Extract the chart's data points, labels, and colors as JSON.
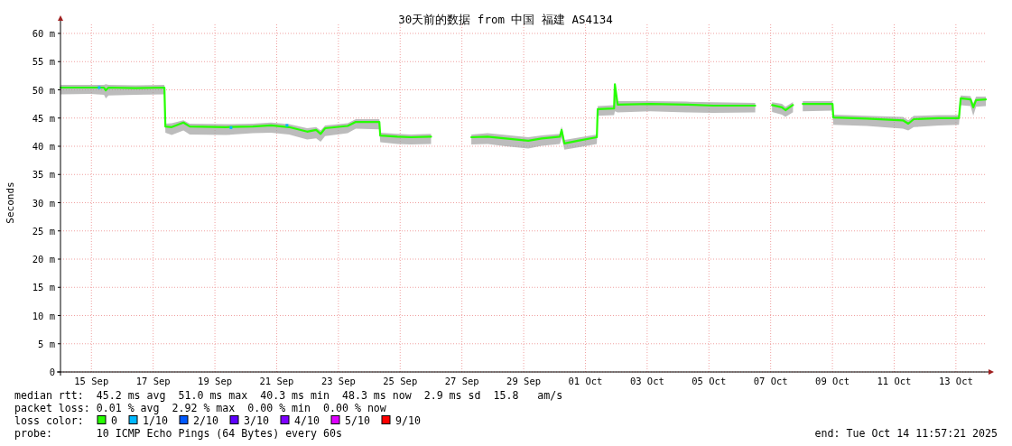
{
  "chart_data": {
    "type": "line",
    "title": "30天前的数据 from 中国 福建 AS4134",
    "ylabel": "Seconds",
    "xlim": [
      "2025-09-14T11:57",
      "2025-10-14T11:57"
    ],
    "xticks": [
      {
        "value": "2025-09-15T12:00",
        "label": "15 Sep"
      },
      {
        "value": "2025-09-17T12:00",
        "label": "17 Sep"
      },
      {
        "value": "2025-09-19T12:00",
        "label": "19 Sep"
      },
      {
        "value": "2025-09-21T12:00",
        "label": "21 Sep"
      },
      {
        "value": "2025-09-23T12:00",
        "label": "23 Sep"
      },
      {
        "value": "2025-09-25T12:00",
        "label": "25 Sep"
      },
      {
        "value": "2025-09-27T12:00",
        "label": "27 Sep"
      },
      {
        "value": "2025-09-29T12:00",
        "label": "29 Sep"
      },
      {
        "value": "2025-10-01T12:00",
        "label": "01 Oct"
      },
      {
        "value": "2025-10-03T12:00",
        "label": "03 Oct"
      },
      {
        "value": "2025-10-05T12:00",
        "label": "05 Oct"
      },
      {
        "value": "2025-10-07T12:00",
        "label": "07 Oct"
      },
      {
        "value": "2025-10-09T12:00",
        "label": "09 Oct"
      },
      {
        "value": "2025-10-11T12:00",
        "label": "11 Oct"
      },
      {
        "value": "2025-10-13T12:00",
        "label": "13 Oct"
      }
    ],
    "ylim": [
      0,
      60
    ],
    "yticks": [
      0,
      {
        "value": 5,
        "label": "5 m"
      },
      {
        "value": 10,
        "label": "10 m"
      },
      {
        "value": 15,
        "label": "15 m"
      },
      {
        "value": 20,
        "label": "20 m"
      },
      {
        "value": 25,
        "label": "25 m"
      },
      {
        "value": 30,
        "label": "30 m"
      },
      {
        "value": 35,
        "label": "35 m"
      },
      {
        "value": 40,
        "label": "40 m"
      },
      {
        "value": 45,
        "label": "45 m"
      },
      {
        "value": 50,
        "label": "50 m"
      },
      {
        "value": 55,
        "label": "55 m"
      },
      {
        "value": 60,
        "label": "60 m"
      }
    ],
    "grid": true,
    "legend": "bottom",
    "legend_title": "loss color:",
    "series": [
      {
        "name": "0",
        "color": "#26ff00",
        "x": [
          "2025-09-14T12:00",
          "2025-09-15T11:00",
          "2025-09-15T21:45",
          "2025-09-15T23:10",
          "2025-09-16T01:15",
          "2025-09-16T22:20",
          "2025-09-17T20:45",
          "2025-09-17T21:30",
          "2025-09-18T02:25",
          "2025-09-18T11:30",
          "2025-09-18T16:25",
          "2025-09-19T20:30",
          "2025-09-20T17:30",
          "2025-09-21T07:35",
          "2025-09-21T21:40",
          "2025-09-22T11:40",
          "2025-09-22T18:40",
          "2025-09-22T22:10",
          "2025-09-23T01:40",
          "2025-09-23T19:10",
          "2025-09-24T01:30",
          "2025-09-24T19:50",
          "2025-09-24T20:30",
          "2025-09-25T09:50",
          "2025-09-25T20:20",
          "2025-09-26T11:50",
          "2025-09-26T12:00",
          "2025-09-27T19:20",
          "2025-09-28T07:55",
          "2025-09-28T22:00",
          "2025-09-29T15:35",
          "2025-09-30T02:05",
          "2025-09-30T16:10",
          "2025-09-30T17:30",
          "2025-09-30T19:40",
          "2025-10-01T06:10",
          "2025-10-01T20:50",
          "2025-10-01T21:35",
          "2025-10-02T10:15",
          "2025-10-02T10:55",
          "2025-10-02T13:05",
          "2025-10-03T14:20",
          "2025-10-04T18:25",
          "2025-10-05T15:25",
          "2025-10-06T23:45",
          "2025-10-07T00:00",
          "2025-10-07T13:05",
          "2025-10-07T20:45",
          "2025-10-07T23:30",
          "2025-10-08T05:10",
          "2025-10-08T05:20",
          "2025-10-08T12:55",
          "2025-10-09T12:05",
          "2025-10-09T12:45",
          "2025-10-10T14:45",
          "2025-10-11T18:50",
          "2025-10-11T23:00",
          "2025-10-12T03:15",
          "2025-10-12T22:50",
          "2025-10-13T14:20",
          "2025-10-13T15:45",
          "2025-10-13T23:25",
          "2025-10-14T01:30",
          "2025-10-14T03:40",
          "2025-10-14T11:15"
        ],
        "values": [
          50.4,
          50.4,
          50.4,
          49.9,
          50.4,
          50.3,
          50.4,
          43.5,
          43.4,
          44.2,
          43.5,
          43.4,
          43.5,
          43.7,
          43.4,
          42.6,
          42.9,
          42.2,
          43.2,
          43.6,
          44.3,
          44.3,
          41.9,
          41.7,
          41.6,
          41.7,
          null,
          41.6,
          41.7,
          41.4,
          41.0,
          41.4,
          41.7,
          42.9,
          40.5,
          41.0,
          41.6,
          46.6,
          46.7,
          51.0,
          47.4,
          47.5,
          47.4,
          47.2,
          47.2,
          null,
          47.3,
          46.9,
          46.4,
          47.3,
          null,
          47.5,
          47.5,
          45.1,
          44.9,
          44.6,
          44.0,
          44.8,
          45.0,
          45.0,
          48.5,
          48.3,
          46.9,
          48.2,
          48.3
        ],
        "lower": [
          49.2,
          49.3,
          49.1,
          48.5,
          49.0,
          49.1,
          49.2,
          42.4,
          42.0,
          42.8,
          42.1,
          42.0,
          42.3,
          42.4,
          42.1,
          41.2,
          41.4,
          40.8,
          41.8,
          42.3,
          43.1,
          43.0,
          40.7,
          40.4,
          40.3,
          40.4,
          null,
          40.3,
          40.4,
          40.0,
          39.6,
          40.1,
          40.4,
          41.5,
          39.4,
          39.8,
          40.4,
          45.4,
          45.5,
          46.2,
          46.0,
          46.2,
          46.0,
          45.9,
          46.0,
          null,
          46.1,
          45.6,
          45.2,
          46.0,
          null,
          46.2,
          46.3,
          43.8,
          43.6,
          43.1,
          42.8,
          43.4,
          43.7,
          43.8,
          47.3,
          47.1,
          45.4,
          47.0,
          47.1
        ],
        "upper": [
          50.9,
          50.9,
          50.9,
          51.0,
          50.9,
          50.8,
          50.9,
          44.0,
          44.1,
          44.6,
          44.0,
          43.9,
          44.0,
          44.2,
          43.9,
          43.2,
          43.4,
          42.8,
          43.7,
          44.1,
          44.8,
          44.8,
          42.4,
          42.2,
          42.1,
          42.2,
          null,
          42.1,
          42.3,
          42.0,
          41.6,
          41.9,
          42.2,
          43.5,
          41.1,
          41.5,
          42.1,
          47.1,
          47.3,
          51.0,
          48.0,
          48.0,
          47.9,
          47.8,
          47.7,
          null,
          47.8,
          47.5,
          47.0,
          47.8,
          null,
          48.0,
          48.0,
          45.6,
          45.4,
          45.2,
          44.6,
          45.4,
          45.5,
          45.5,
          49.0,
          48.9,
          47.6,
          48.8,
          48.8
        ]
      },
      {
        "name": "1/10",
        "color": "#00b8ff",
        "type": "scatter",
        "x": [
          "2025-09-15T18:00",
          "2025-09-20T00:30",
          "2025-09-21T20:00"
        ],
        "values": [
          50.4,
          43.3,
          43.7
        ]
      },
      {
        "name": "2/10",
        "color": "#0059ff",
        "type": "scatter"
      },
      {
        "name": "3/10",
        "color": "#5e00ff",
        "type": "scatter"
      },
      {
        "name": "4/10",
        "color": "#7e00ff",
        "type": "scatter"
      },
      {
        "name": "5/10",
        "color": "#dd00ff",
        "type": "scatter"
      },
      {
        "name": "9/10",
        "color": "#ff0000",
        "type": "scatter"
      }
    ],
    "annotations": [
      "median rtt:  45.2 ms avg  51.0 ms max  40.3 ms min  48.3 ms now  2.9 ms sd  15.8   am/s",
      "packet loss: 0.01 % avg  2.92 % max  0.00 % min  0.00 % now",
      "probe:       10 ICMP Echo Pings (64 Bytes) every 60s",
      "end: Tue Oct 14 11:57:21 2025"
    ]
  }
}
